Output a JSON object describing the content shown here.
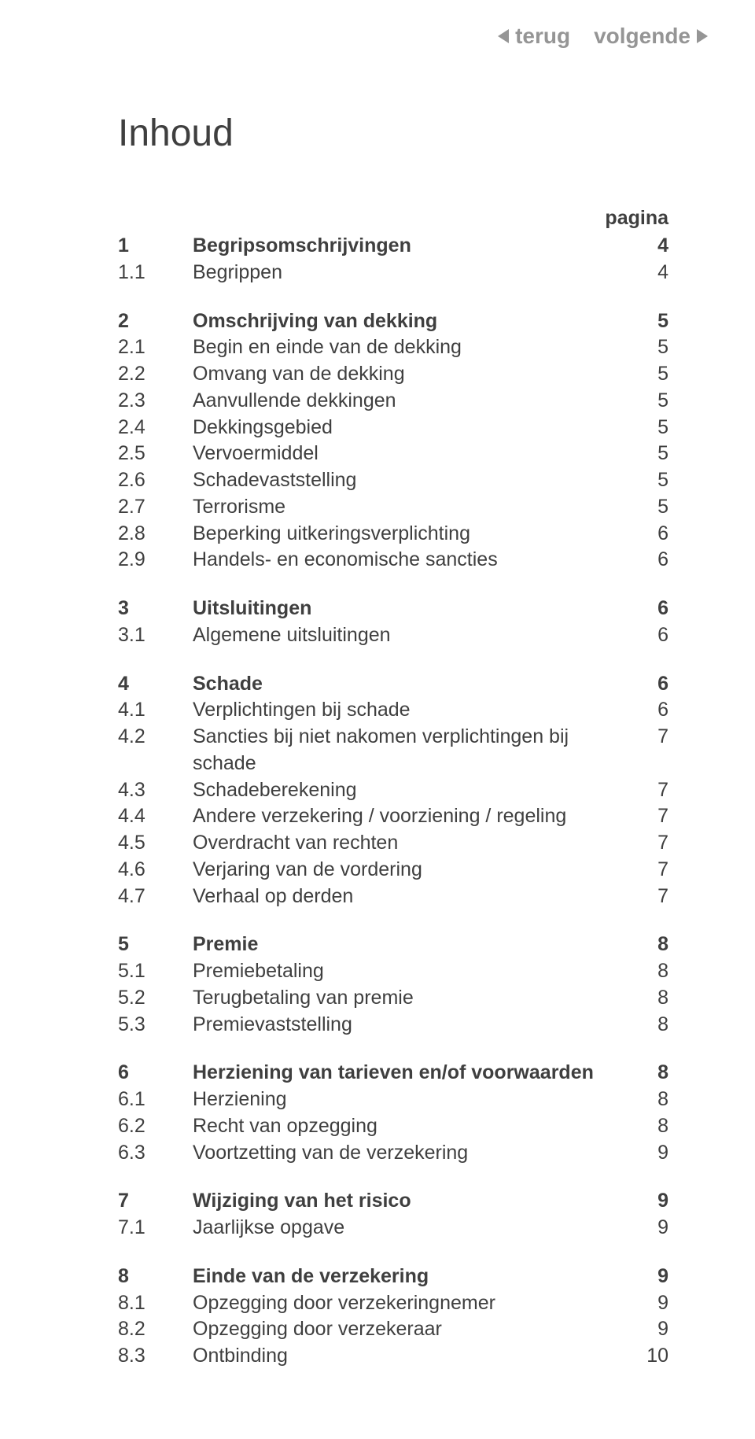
{
  "nav": {
    "back": "terug",
    "next": "volgende"
  },
  "title": "Inhoud",
  "page_label": "pagina",
  "colors": {
    "text": "#3f3f3f",
    "muted": "#959595",
    "background": "#ffffff"
  },
  "sections": [
    {
      "items": [
        {
          "num": "1",
          "text": "Begripsomschrijvingen",
          "page": "4",
          "bold": true
        },
        {
          "num": "1.1",
          "text": "Begrippen",
          "page": "4",
          "bold": false
        }
      ]
    },
    {
      "items": [
        {
          "num": "2",
          "text": "Omschrijving van dekking",
          "page": "5",
          "bold": true
        },
        {
          "num": "2.1",
          "text": "Begin en einde van de dekking",
          "page": "5",
          "bold": false
        },
        {
          "num": "2.2",
          "text": "Omvang van de dekking",
          "page": "5",
          "bold": false
        },
        {
          "num": "2.3",
          "text": "Aanvullende dekkingen",
          "page": "5",
          "bold": false
        },
        {
          "num": "2.4",
          "text": "Dekkingsgebied",
          "page": "5",
          "bold": false
        },
        {
          "num": "2.5",
          "text": "Vervoermiddel",
          "page": "5",
          "bold": false
        },
        {
          "num": "2.6",
          "text": "Schadevaststelling",
          "page": "5",
          "bold": false
        },
        {
          "num": "2.7",
          "text": "Terrorisme",
          "page": "5",
          "bold": false
        },
        {
          "num": "2.8",
          "text": "Beperking uitkeringsverplichting",
          "page": "6",
          "bold": false
        },
        {
          "num": "2.9",
          "text": "Handels- en economische sancties",
          "page": "6",
          "bold": false
        }
      ]
    },
    {
      "items": [
        {
          "num": "3",
          "text": "Uitsluitingen",
          "page": "6",
          "bold": true
        },
        {
          "num": "3.1",
          "text": "Algemene uitsluitingen",
          "page": "6",
          "bold": false
        }
      ]
    },
    {
      "items": [
        {
          "num": "4",
          "text": "Schade",
          "page": "6",
          "bold": true
        },
        {
          "num": "4.1",
          "text": "Verplichtingen bij schade",
          "page": "6",
          "bold": false
        },
        {
          "num": "4.2",
          "text": "Sancties bij niet nakomen verplichtingen bij schade",
          "page": "7",
          "bold": false
        },
        {
          "num": "4.3",
          "text": "Schadeberekening",
          "page": "7",
          "bold": false
        },
        {
          "num": "4.4",
          "text": "Andere verzekering / voorziening / regeling",
          "page": "7",
          "bold": false
        },
        {
          "num": "4.5",
          "text": "Overdracht van rechten",
          "page": "7",
          "bold": false
        },
        {
          "num": "4.6",
          "text": "Verjaring van de vordering",
          "page": "7",
          "bold": false
        },
        {
          "num": "4.7",
          "text": "Verhaal op derden",
          "page": "7",
          "bold": false
        }
      ]
    },
    {
      "items": [
        {
          "num": "5",
          "text": "Premie",
          "page": "8",
          "bold": true
        },
        {
          "num": "5.1",
          "text": "Premiebetaling",
          "page": "8",
          "bold": false
        },
        {
          "num": "5.2",
          "text": "Terugbetaling van premie",
          "page": "8",
          "bold": false
        },
        {
          "num": "5.3",
          "text": "Premievaststelling",
          "page": "8",
          "bold": false
        }
      ]
    },
    {
      "items": [
        {
          "num": "6",
          "text": "Herziening van tarieven en/of voorwaarden",
          "page": "8",
          "bold": true
        },
        {
          "num": "6.1",
          "text": "Herziening",
          "page": "8",
          "bold": false
        },
        {
          "num": "6.2",
          "text": "Recht van opzegging",
          "page": "8",
          "bold": false
        },
        {
          "num": "6.3",
          "text": "Voortzetting van de verzekering",
          "page": "9",
          "bold": false
        }
      ]
    },
    {
      "items": [
        {
          "num": "7",
          "text": "Wijziging van het risico",
          "page": "9",
          "bold": true
        },
        {
          "num": "7.1",
          "text": "Jaarlijkse opgave",
          "page": "9",
          "bold": false
        }
      ]
    },
    {
      "items": [
        {
          "num": "8",
          "text": "Einde van de verzekering",
          "page": "9",
          "bold": true
        },
        {
          "num": "8.1",
          "text": "Opzegging door verzekeringnemer",
          "page": "9",
          "bold": false
        },
        {
          "num": "8.2",
          "text": "Opzegging door verzekeraar",
          "page": "9",
          "bold": false
        },
        {
          "num": "8.3",
          "text": "Ontbinding",
          "page": "10",
          "bold": false
        }
      ]
    }
  ]
}
